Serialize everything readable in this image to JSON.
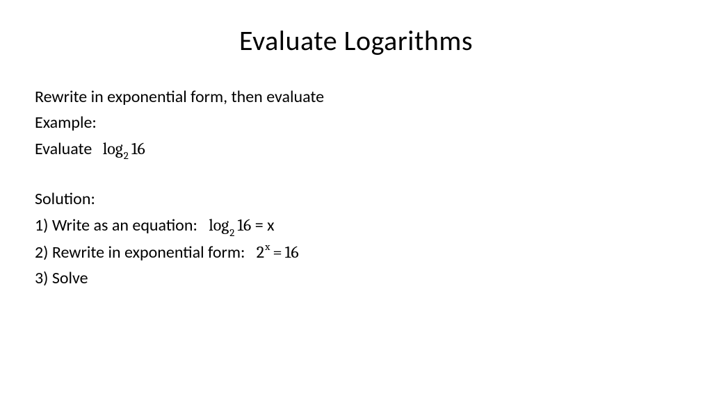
{
  "title": "Evaluate Logarithms",
  "intro": "Rewrite in exponential form, then evaluate",
  "example_label": "Example:",
  "evaluate_label": "Evaluate",
  "log": {
    "fn": "log",
    "base": "2",
    "arg": "16"
  },
  "solution_label": "Solution:",
  "step1_text": "1) Write as an equation:",
  "step1_rhs": " = x",
  "step2_text": "2) Rewrite in exponential form:",
  "exp": {
    "base": "2",
    "sup": "x",
    "eq": "=",
    "rhs": "16"
  },
  "step3_text": "3) Solve",
  "colors": {
    "background": "#ffffff",
    "text": "#000000"
  },
  "fontsizes": {
    "title": 40,
    "body": 24,
    "subscript": 15
  }
}
